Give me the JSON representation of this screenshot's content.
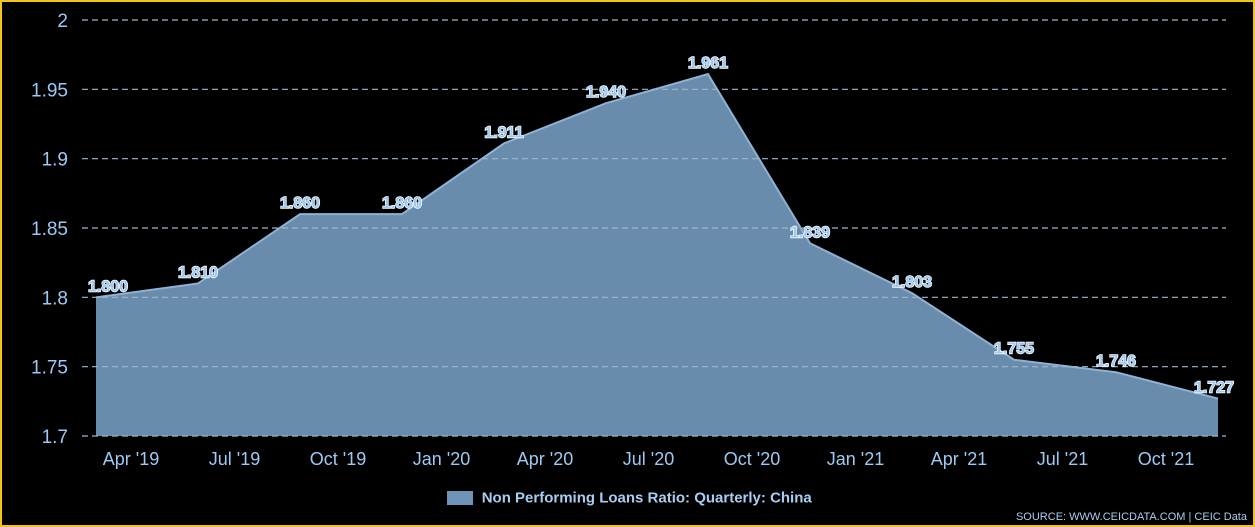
{
  "chart_data": {
    "type": "area",
    "x_tick_labels": [
      "Apr '19",
      "Jul '19",
      "Oct '19",
      "Jan '20",
      "Apr '20",
      "Jul '20",
      "Oct '20",
      "Jan '21",
      "Apr '21",
      "Jul '21",
      "Oct '21"
    ],
    "y_tick_labels": [
      "2",
      "1.95",
      "1.9",
      "1.85",
      "1.8",
      "1.75",
      "1.7"
    ],
    "ylim": [
      1.7,
      2.0
    ],
    "grid": true,
    "series": [
      {
        "name": "Non Performing Loans Ratio: Quarterly: China",
        "color": "#6f93b6",
        "points": [
          {
            "x": "2019-03",
            "value": 1.8,
            "label": "1.800"
          },
          {
            "x": "2019-06",
            "value": 1.81,
            "label": "1.810"
          },
          {
            "x": "2019-09",
            "value": 1.86,
            "label": "1.860"
          },
          {
            "x": "2019-12",
            "value": 1.86,
            "label": "1.860"
          },
          {
            "x": "2020-03",
            "value": 1.911,
            "label": "1.911"
          },
          {
            "x": "2020-06",
            "value": 1.94,
            "label": "1.940"
          },
          {
            "x": "2020-09",
            "value": 1.961,
            "label": "1.961"
          },
          {
            "x": "2020-12",
            "value": 1.839,
            "label": "1.839"
          },
          {
            "x": "2021-03",
            "value": 1.803,
            "label": "1.803"
          },
          {
            "x": "2021-06",
            "value": 1.755,
            "label": "1.755"
          },
          {
            "x": "2021-09",
            "value": 1.746,
            "label": "1.746"
          },
          {
            "x": "2021-12",
            "value": 1.727,
            "label": "1.727"
          }
        ]
      }
    ]
  },
  "legend": {
    "label": "Non Performing Loans Ratio: Quarterly: China"
  },
  "source": "SOURCE: WWW.CEICDATA.COM | CEIC Data",
  "colors": {
    "border": "#f0c419",
    "area_fill": "#6f93b6",
    "text": "#9ec9f2",
    "grid": "#9fb6cc"
  }
}
